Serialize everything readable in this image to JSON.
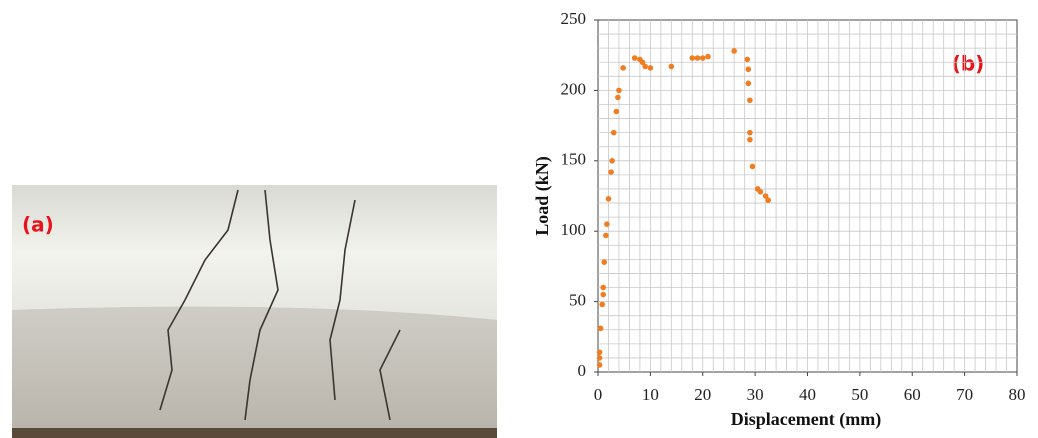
{
  "photo_label": "(a)",
  "chart_data": {
    "type": "scatter",
    "annotation": "(b)",
    "x_label": "Displacement (mm)",
    "y_label": "Load (kN)",
    "color": "#ef7d22",
    "grid": true,
    "xminor": 2,
    "yminor": 10,
    "xlim": [
      0,
      80
    ],
    "xticks": [
      0,
      10,
      20,
      30,
      40,
      50,
      60,
      70,
      80
    ],
    "ylim": [
      0,
      250
    ],
    "yticks": [
      0,
      50,
      100,
      150,
      200,
      250
    ],
    "x": [
      0.3,
      0.3,
      0.3,
      0.5,
      0.8,
      1,
      1,
      1.2,
      1.5,
      1.7,
      2,
      2.5,
      2.7,
      3,
      3.5,
      3.8,
      4,
      4.8,
      7,
      8,
      8.5,
      9,
      10,
      14,
      18,
      19,
      20,
      21,
      26,
      28.5,
      28.7,
      28.7,
      29,
      29,
      29,
      29.5,
      30.5,
      31,
      32,
      32.5
    ],
    "values": [
      5,
      10,
      14,
      31,
      48,
      55,
      60,
      78,
      97,
      105,
      123,
      142,
      150,
      170,
      185,
      195,
      200,
      216,
      223,
      222,
      220,
      217,
      216,
      217,
      223,
      223,
      223,
      224,
      228,
      222,
      215,
      205,
      193,
      170,
      165,
      146,
      130,
      128,
      125,
      122
    ]
  }
}
